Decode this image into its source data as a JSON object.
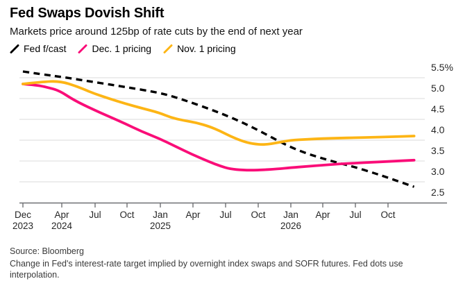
{
  "header": {
    "title": "Fed Swaps Dovish Shift",
    "subtitle": "Markets price around 125bp of rate cuts by the end of next year"
  },
  "chart_data": {
    "type": "line",
    "title": "Fed Swaps Dovish Shift",
    "subtitle": "Markets price around 125bp of rate cuts by the end of next year",
    "x_unit": "months since Dec 2023",
    "ylim": [
      2.5,
      5.75
    ],
    "grid": "horizontal",
    "legend_position": "top-left",
    "axis_color": "#6f7073",
    "gridline_color": "#e2e2e2",
    "y_ticks": [
      {
        "value": 5.5,
        "label": "5.5%"
      },
      {
        "value": 5.0,
        "label": "5.0"
      },
      {
        "value": 4.5,
        "label": "4.5"
      },
      {
        "value": 4.0,
        "label": "4.0"
      },
      {
        "value": 3.5,
        "label": "3.5"
      },
      {
        "value": 3.0,
        "label": "3.0"
      },
      {
        "value": 2.5,
        "label": "2.5"
      }
    ],
    "x_ticks": [
      {
        "m": 0,
        "month": "Dec",
        "year": "2023"
      },
      {
        "m": 4,
        "month": "Apr",
        "year": "2024"
      },
      {
        "m": 7,
        "month": "Jul",
        "year": ""
      },
      {
        "m": 10,
        "month": "Oct",
        "year": ""
      },
      {
        "m": 13,
        "month": "Jan",
        "year": "2025"
      },
      {
        "m": 16,
        "month": "Apr",
        "year": ""
      },
      {
        "m": 19,
        "month": "Jul",
        "year": ""
      },
      {
        "m": 22,
        "month": "Oct",
        "year": ""
      },
      {
        "m": 25,
        "month": "Jan",
        "year": "2026"
      },
      {
        "m": 28,
        "month": "Apr",
        "year": ""
      },
      {
        "m": 31,
        "month": "Jul",
        "year": ""
      },
      {
        "m": 34,
        "month": "Oct",
        "year": ""
      }
    ],
    "series": [
      {
        "name": "Fed f/cast",
        "color": "#000000",
        "style": "dashed",
        "points": [
          [
            0,
            5.65
          ],
          [
            2,
            5.58
          ],
          [
            4,
            5.52
          ],
          [
            6.8,
            5.4
          ],
          [
            9.8,
            5.28
          ],
          [
            12.9,
            5.14
          ],
          [
            14.4,
            5.03
          ],
          [
            15.9,
            4.9
          ],
          [
            17.5,
            4.75
          ],
          [
            19,
            4.6
          ],
          [
            20.5,
            4.43
          ],
          [
            22,
            4.24
          ],
          [
            23.5,
            4.03
          ],
          [
            25,
            3.83
          ],
          [
            26.5,
            3.68
          ],
          [
            28,
            3.56
          ],
          [
            29.5,
            3.45
          ],
          [
            31,
            3.35
          ],
          [
            32.6,
            3.22
          ],
          [
            34.1,
            3.09
          ],
          [
            36.4,
            2.88
          ]
        ]
      },
      {
        "name": "Dec. 1 pricing",
        "color": "#fa0d78",
        "style": "solid",
        "points": [
          [
            0,
            5.35
          ],
          [
            1.5,
            5.32
          ],
          [
            2.5,
            5.27
          ],
          [
            3.75,
            5.19
          ],
          [
            5.1,
            4.96
          ],
          [
            6.8,
            4.74
          ],
          [
            8.3,
            4.57
          ],
          [
            9.8,
            4.4
          ],
          [
            11.3,
            4.21
          ],
          [
            12.9,
            4.04
          ],
          [
            14.4,
            3.85
          ],
          [
            15.9,
            3.66
          ],
          [
            17.5,
            3.48
          ],
          [
            18.5,
            3.38
          ],
          [
            19.4,
            3.31
          ],
          [
            20.6,
            3.28
          ],
          [
            22,
            3.28
          ],
          [
            23.8,
            3.31
          ],
          [
            25,
            3.34
          ],
          [
            26.5,
            3.37
          ],
          [
            28,
            3.4
          ],
          [
            29.5,
            3.43
          ],
          [
            31,
            3.45
          ],
          [
            32.6,
            3.47
          ],
          [
            34.1,
            3.49
          ],
          [
            36.4,
            3.52
          ]
        ]
      },
      {
        "name": "Nov. 1 pricing",
        "color": "#fdb515",
        "style": "solid",
        "points": [
          [
            0,
            5.35
          ],
          [
            1.9,
            5.4
          ],
          [
            3.8,
            5.42
          ],
          [
            5.4,
            5.29
          ],
          [
            6.8,
            5.13
          ],
          [
            8.3,
            5.0
          ],
          [
            9.8,
            4.88
          ],
          [
            11.3,
            4.77
          ],
          [
            12.9,
            4.66
          ],
          [
            14,
            4.54
          ],
          [
            15.2,
            4.47
          ],
          [
            16.3,
            4.42
          ],
          [
            17.5,
            4.33
          ],
          [
            18.5,
            4.22
          ],
          [
            19.4,
            4.1
          ],
          [
            20.5,
            3.98
          ],
          [
            21.5,
            3.91
          ],
          [
            22.6,
            3.89
          ],
          [
            23.8,
            3.94
          ],
          [
            25,
            4.0
          ],
          [
            26.5,
            4.02
          ],
          [
            28,
            4.04
          ],
          [
            29.5,
            4.05
          ],
          [
            31,
            4.06
          ],
          [
            32.6,
            4.07
          ],
          [
            34.1,
            4.08
          ],
          [
            36.4,
            4.1
          ]
        ]
      }
    ]
  },
  "footer": {
    "source": "Source: Bloomberg",
    "note": "Change in Fed's interest-rate target implied by overnight index swaps and SOFR futures. Fed dots use interpolation."
  }
}
